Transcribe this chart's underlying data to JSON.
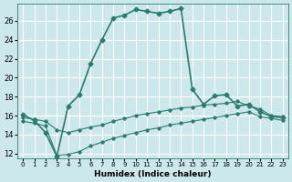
{
  "xlabel": "Humidex (Indice chaleur)",
  "background_color": "#cce8ec",
  "grid_color": "#b0d4d8",
  "line_color": "#2d7a6e",
  "xlim": [
    -0.5,
    23.5
  ],
  "ylim": [
    11.5,
    27.8
  ],
  "yticks": [
    12,
    14,
    16,
    18,
    20,
    22,
    24,
    26
  ],
  "xticks": [
    0,
    1,
    2,
    3,
    4,
    5,
    6,
    7,
    8,
    9,
    10,
    11,
    12,
    13,
    14,
    15,
    16,
    17,
    18,
    19,
    20,
    21,
    22,
    23
  ],
  "series": [
    {
      "x": [
        0,
        1,
        2,
        3,
        4,
        5,
        6,
        7,
        8,
        9,
        10,
        11,
        12,
        13,
        14,
        15,
        16,
        17,
        18,
        19,
        20,
        21,
        22,
        23
      ],
      "y": [
        16.1,
        15.5,
        14.2,
        11.7,
        17.0,
        18.2,
        21.5,
        24.0,
        26.3,
        26.6,
        27.2,
        27.0,
        26.8,
        27.0,
        27.3,
        18.8,
        17.2,
        18.1,
        18.2,
        17.0,
        17.2,
        16.4,
        15.9,
        15.8
      ],
      "marker": "D",
      "markersize": 2.5,
      "linewidth": 1.2
    },
    {
      "x": [
        0,
        1,
        2,
        3,
        4,
        5,
        6,
        7,
        8,
        9,
        10,
        11,
        12,
        13,
        14,
        15,
        16,
        17,
        18,
        19,
        20,
        21,
        22,
        23
      ],
      "y": [
        15.8,
        15.6,
        15.4,
        14.5,
        14.2,
        14.5,
        14.8,
        15.0,
        15.4,
        15.7,
        16.0,
        16.2,
        16.4,
        16.6,
        16.8,
        16.9,
        17.1,
        17.2,
        17.3,
        17.5,
        17.0,
        16.7,
        16.0,
        15.9
      ],
      "marker": "D",
      "markersize": 1.8,
      "linewidth": 0.8
    },
    {
      "x": [
        0,
        1,
        2,
        3,
        4,
        5,
        6,
        7,
        8,
        9,
        10,
        11,
        12,
        13,
        14,
        15,
        16,
        17,
        18,
        19,
        20,
        21,
        22,
        23
      ],
      "y": [
        15.4,
        15.2,
        14.9,
        11.8,
        11.9,
        12.2,
        12.8,
        13.2,
        13.6,
        13.9,
        14.2,
        14.5,
        14.7,
        15.0,
        15.2,
        15.4,
        15.6,
        15.8,
        16.0,
        16.2,
        16.4,
        15.9,
        15.7,
        15.5
      ],
      "marker": "D",
      "markersize": 1.8,
      "linewidth": 0.8
    }
  ]
}
